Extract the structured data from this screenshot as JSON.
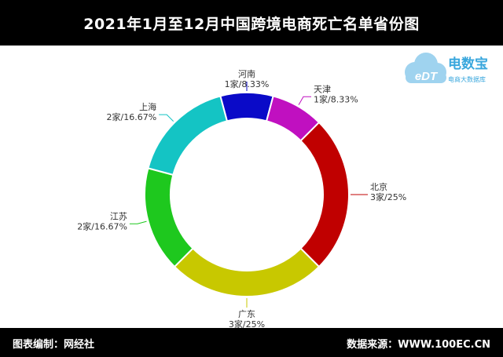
{
  "header": {
    "title": "2021年1月至12月中国跨境电商死亡名单省份图"
  },
  "footer": {
    "left": "图表编制：网经社",
    "right": "数据来源：WWW.100EC.CN"
  },
  "logo": {
    "name": "电数宝",
    "tagline": "电商大数据库",
    "mark": "eDT"
  },
  "colors": {
    "beijing": "#c00000",
    "guangdong": "#c8c800",
    "jiangsu": "#1ec81e",
    "shanghai": "#14c4c4",
    "henan": "#0a0ac8",
    "tianjin": "#c010c0"
  },
  "chart_data": {
    "type": "pie",
    "donut": true,
    "categories": [
      "河南",
      "天津",
      "北京",
      "广东",
      "江苏",
      "上海"
    ],
    "values": [
      1,
      1,
      3,
      3,
      2,
      2
    ],
    "value_labels": [
      "1家/8.33%",
      "1家/8.33%",
      "3家/25%",
      "3家/25%",
      "2家/16.67%",
      "2家/16.67%"
    ],
    "percentages": [
      8.33,
      8.33,
      25,
      25,
      16.67,
      16.67
    ],
    "unit": "家"
  }
}
